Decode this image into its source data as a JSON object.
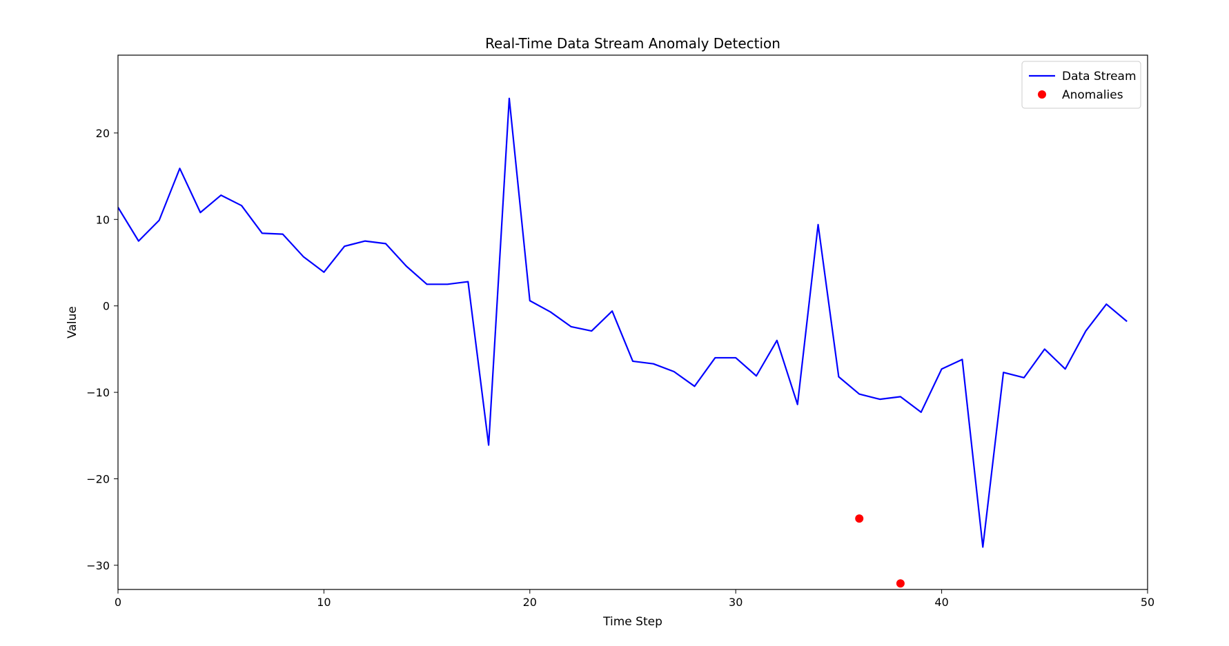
{
  "chart_data": {
    "type": "line",
    "title": "Real-Time Data Stream Anomaly Detection",
    "xlabel": "Time Step",
    "ylabel": "Value",
    "xlim": [
      0,
      50
    ],
    "ylim": [
      -32.8,
      29.0
    ],
    "x_ticks": [
      0,
      10,
      20,
      30,
      40,
      50
    ],
    "y_ticks": [
      -30,
      -20,
      -10,
      0,
      10,
      20
    ],
    "x_tick_labels": [
      "0",
      "10",
      "20",
      "30",
      "40",
      "50"
    ],
    "y_tick_labels": [
      "−30",
      "−20",
      "−10",
      "0",
      "10",
      "20"
    ],
    "grid": false,
    "legend_position": "top-right",
    "series": [
      {
        "name": "Data Stream",
        "kind": "line",
        "color": "#0000ff",
        "x": [
          0,
          1,
          2,
          3,
          4,
          5,
          6,
          7,
          8,
          9,
          10,
          11,
          12,
          13,
          14,
          15,
          16,
          17,
          18,
          19,
          20,
          21,
          22,
          23,
          24,
          25,
          26,
          27,
          28,
          29,
          30,
          31,
          32,
          33,
          34,
          35,
          36,
          37,
          38,
          39,
          40,
          41,
          42,
          43,
          44,
          45,
          46,
          47,
          48,
          49
        ],
        "values": [
          11.4,
          7.5,
          9.9,
          15.9,
          10.8,
          12.8,
          11.6,
          8.4,
          8.3,
          5.7,
          3.9,
          6.9,
          7.5,
          7.2,
          4.6,
          2.5,
          2.5,
          2.8,
          -16.1,
          24.0,
          0.6,
          -0.7,
          -2.4,
          -2.9,
          -0.6,
          -6.4,
          -6.7,
          -7.6,
          -9.3,
          -6.0,
          -6.0,
          -8.1,
          -4.0,
          -11.4,
          9.4,
          -8.2,
          -10.2,
          -10.8,
          -10.5,
          -12.3,
          -7.3,
          -6.2,
          -27.9,
          -7.7,
          -8.3,
          -5.0,
          -7.3,
          -2.9,
          0.2,
          -1.8
        ]
      },
      {
        "name": "Anomalies",
        "kind": "scatter",
        "color": "#ff0000",
        "x": [
          36,
          38
        ],
        "values": [
          -24.6,
          -32.1
        ]
      }
    ]
  }
}
